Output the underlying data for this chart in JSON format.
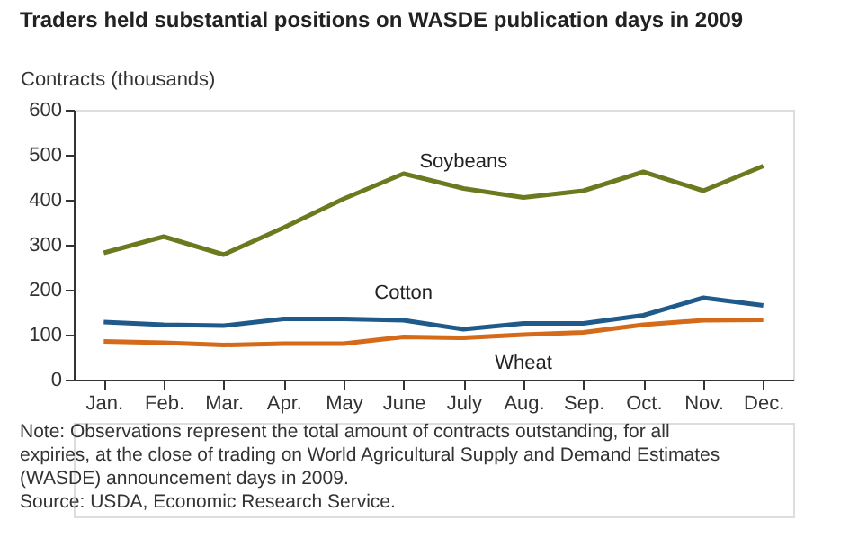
{
  "chart_data": {
    "type": "line",
    "title": "Traders held substantial positions on WASDE publication days in 2009",
    "ylabel": "Contracts (thousands)",
    "categories": [
      "Jan.",
      "Feb.",
      "Mar.",
      "Apr.",
      "May",
      "June",
      "July",
      "Aug.",
      "Sep.",
      "Oct.",
      "Nov.",
      "Dec."
    ],
    "series": [
      {
        "name": "Soybeans",
        "color": "#6b7a1e",
        "values": [
          282,
          318,
          278,
          338,
          402,
          458,
          425,
          405,
          420,
          462,
          420,
          475
        ]
      },
      {
        "name": "Cotton",
        "color": "#1f5a8a",
        "values": [
          128,
          122,
          120,
          135,
          135,
          132,
          112,
          125,
          125,
          143,
          182,
          165
        ]
      },
      {
        "name": "Wheat",
        "color": "#d46a1a",
        "values": [
          85,
          82,
          77,
          80,
          80,
          95,
          93,
          100,
          105,
          122,
          132,
          133
        ]
      }
    ],
    "ylim": [
      0,
      600
    ],
    "yticks": [
      0,
      100,
      200,
      300,
      400,
      500,
      600
    ],
    "grid": false,
    "marker": "none",
    "line_style": "solid",
    "annotations": [
      "Note: Observations represent the total amount of contracts outstanding, for all expiries, at the close of trading on World Agricultural Supply and Demand Estimates (WASDE) announcement days in 2009.",
      "Source: USDA, Economic Research Service."
    ]
  }
}
